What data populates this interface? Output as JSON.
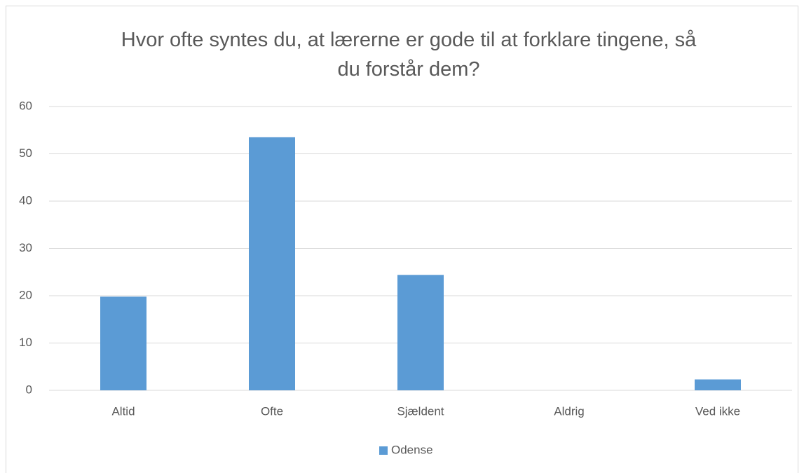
{
  "chart_data": {
    "type": "bar",
    "title": "Hvor ofte syntes du, at lærerne er gode til at forklare tingene, så du forstår dem?",
    "categories": [
      "Altid",
      "Ofte",
      "Sjældent",
      "Aldrig",
      "Ved ikke"
    ],
    "series": [
      {
        "name": "Odense",
        "color": "#5b9bd5",
        "values": [
          19.8,
          53.5,
          24.4,
          0,
          2.3
        ]
      }
    ],
    "ylim": [
      0,
      60
    ],
    "yticks": [
      0,
      10,
      20,
      30,
      40,
      50,
      60
    ],
    "grid": true,
    "legend": "bottom"
  }
}
